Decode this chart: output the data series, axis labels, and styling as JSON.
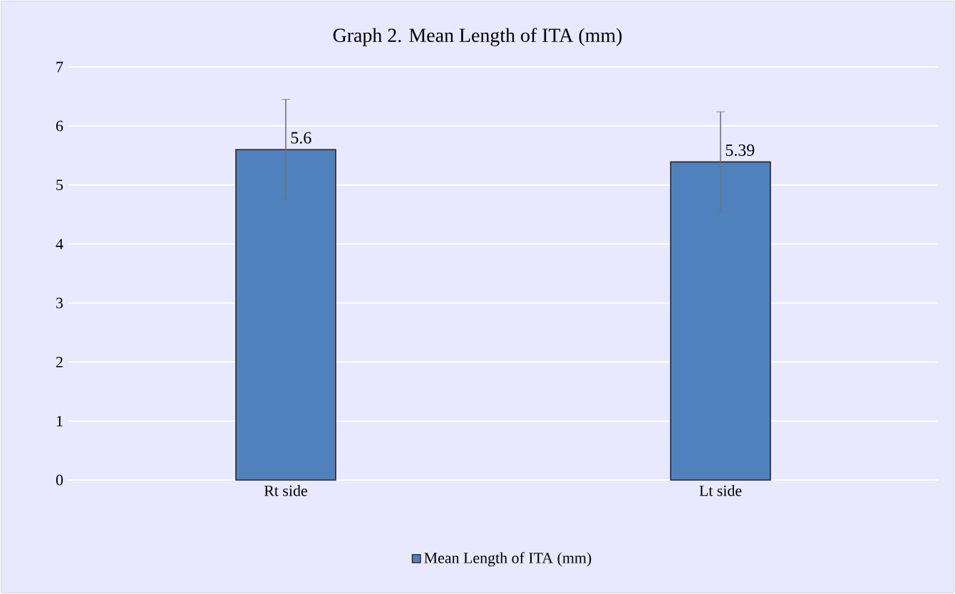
{
  "chart_data": {
    "type": "bar",
    "title": "Graph 2. Mean Length of ITA (mm)",
    "categories": [
      "Rt side",
      "Lt side"
    ],
    "series": [
      {
        "name": "Mean Length of ITA (mm)",
        "color": "#4f81bd",
        "values": [
          5.6,
          5.39
        ],
        "errors": [
          0.85,
          0.85
        ]
      }
    ],
    "ylim": [
      0,
      7
    ],
    "yticks": [
      0,
      1,
      2,
      3,
      4,
      5,
      6,
      7
    ],
    "grid": "y",
    "legend": "bottom",
    "data_labels": true
  }
}
